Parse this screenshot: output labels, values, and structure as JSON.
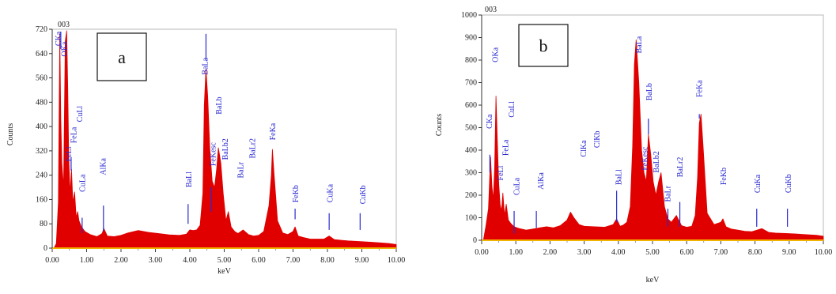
{
  "chart_data": [
    {
      "type": "area",
      "panel_label": "a",
      "top_label": "003",
      "xlabel": "keV",
      "ylabel": "Counts",
      "xlim": [
        0,
        10
      ],
      "ylim": [
        0,
        720
      ],
      "x_ticks": [
        "0.00",
        "1.00",
        "2.00",
        "3.00",
        "4.00",
        "5.00",
        "6.00",
        "7.00",
        "8.00",
        "9.00",
        "10.00"
      ],
      "y_ticks": [
        "0",
        "80",
        "160",
        "240",
        "320",
        "400",
        "480",
        "560",
        "640",
        "720"
      ],
      "series": [
        {
          "color": "#e00000",
          "x": [
            0.05,
            0.12,
            0.18,
            0.22,
            0.25,
            0.28,
            0.33,
            0.38,
            0.42,
            0.45,
            0.48,
            0.52,
            0.56,
            0.6,
            0.65,
            0.7,
            0.74,
            0.78,
            0.85,
            0.95,
            1.1,
            1.3,
            1.45,
            1.5,
            1.6,
            1.8,
            2.0,
            2.2,
            2.5,
            2.8,
            3.1,
            3.4,
            3.7,
            3.9,
            4.0,
            4.1,
            4.2,
            4.3,
            4.38,
            4.42,
            4.47,
            4.52,
            4.58,
            4.65,
            4.72,
            4.78,
            4.83,
            4.9,
            4.97,
            5.05,
            5.12,
            5.2,
            5.3,
            5.4,
            5.55,
            5.7,
            5.85,
            6.0,
            6.15,
            6.3,
            6.37,
            6.4,
            6.45,
            6.55,
            6.7,
            6.85,
            7.0,
            7.06,
            7.15,
            7.3,
            7.5,
            7.7,
            7.9,
            8.05,
            8.2,
            8.4,
            8.6,
            8.9,
            9.2,
            9.5,
            9.8,
            10.0
          ],
          "y": [
            0,
            15,
            150,
            705,
            420,
            280,
            200,
            680,
            715,
            540,
            300,
            180,
            260,
            150,
            185,
            100,
            120,
            90,
            70,
            55,
            45,
            38,
            48,
            65,
            40,
            38,
            42,
            50,
            58,
            52,
            48,
            44,
            42,
            46,
            60,
            58,
            60,
            75,
            180,
            470,
            590,
            500,
            330,
            220,
            200,
            260,
            330,
            280,
            180,
            90,
            120,
            70,
            55,
            48,
            60,
            45,
            40,
            42,
            55,
            140,
            240,
            325,
            240,
            90,
            50,
            45,
            55,
            70,
            40,
            35,
            30,
            30,
            30,
            40,
            28,
            26,
            24,
            22,
            20,
            18,
            15,
            12
          ]
        }
      ],
      "annotations": [
        {
          "text": "CKa",
          "x": 0.25,
          "y": 665,
          "marker": 0.25,
          "mlo": 655,
          "mhi": 712
        },
        {
          "text": "OKa",
          "x": 0.43,
          "y": 630,
          "marker": null
        },
        {
          "text": "FeLl",
          "x": 0.55,
          "y": 285,
          "marker": 0.55,
          "mlo": 255,
          "mhi": 300
        },
        {
          "text": "FeLa",
          "x": 0.7,
          "y": 345,
          "marker": null
        },
        {
          "text": "CuLl",
          "x": 0.87,
          "y": 415,
          "marker": null
        },
        {
          "text": "CuLa",
          "x": 0.95,
          "y": 185,
          "marker": 0.87,
          "mlo": 50,
          "mhi": 100
        },
        {
          "text": "AlKa",
          "x": 1.55,
          "y": 240,
          "marker": 1.49,
          "mlo": 55,
          "mhi": 140
        },
        {
          "text": "BaLl",
          "x": 4.05,
          "y": 200,
          "marker": 3.95,
          "mlo": 80,
          "mhi": 145
        },
        {
          "text": "BaLa",
          "x": 4.52,
          "y": 570,
          "marker": 4.47,
          "mlo": 620,
          "mhi": 705
        },
        {
          "text": "BaLb",
          "x": 4.92,
          "y": 440,
          "marker": null
        },
        {
          "text": "FeKesc",
          "x": 4.75,
          "y": 270,
          "marker": 4.62,
          "mlo": 120,
          "mhi": 200
        },
        {
          "text": "BaLb2",
          "x": 5.1,
          "y": 290,
          "marker": null
        },
        {
          "text": "BaLr",
          "x": 5.55,
          "y": 230,
          "marker": null
        },
        {
          "text": "BaLr2",
          "x": 5.9,
          "y": 295,
          "marker": null
        },
        {
          "text": "FeKa",
          "x": 6.48,
          "y": 355,
          "marker": null
        },
        {
          "text": "FeKb",
          "x": 7.15,
          "y": 150,
          "marker": 7.06,
          "mlo": 95,
          "mhi": 130
        },
        {
          "text": "CuKa",
          "x": 8.15,
          "y": 150,
          "marker": 8.05,
          "mlo": 60,
          "mhi": 115
        },
        {
          "text": "CuKb",
          "x": 9.1,
          "y": 145,
          "marker": 8.95,
          "mlo": 60,
          "mhi": 115
        }
      ]
    },
    {
      "type": "area",
      "panel_label": "b",
      "top_label": "003",
      "xlabel": "keV",
      "ylabel": "Counts",
      "xlim": [
        0,
        10
      ],
      "ylim": [
        0,
        1000
      ],
      "x_ticks": [
        "0.00",
        "1.00",
        "2.00",
        "3.00",
        "4.00",
        "5.00",
        "6.00",
        "7.00",
        "8.00",
        "9.00",
        "10.00"
      ],
      "y_ticks": [
        "0",
        "100",
        "200",
        "300",
        "400",
        "500",
        "600",
        "700",
        "800",
        "900",
        "1000"
      ],
      "series": [
        {
          "color": "#e00000",
          "x": [
            0.05,
            0.12,
            0.2,
            0.26,
            0.3,
            0.34,
            0.38,
            0.42,
            0.46,
            0.5,
            0.54,
            0.58,
            0.62,
            0.67,
            0.72,
            0.78,
            0.85,
            0.95,
            1.1,
            1.3,
            1.5,
            1.7,
            1.9,
            2.1,
            2.3,
            2.5,
            2.6,
            2.7,
            2.85,
            3.0,
            3.3,
            3.6,
            3.85,
            3.95,
            4.05,
            4.15,
            4.25,
            4.35,
            4.42,
            4.47,
            4.52,
            4.6,
            4.68,
            4.75,
            4.82,
            4.88,
            4.95,
            5.02,
            5.1,
            5.18,
            5.25,
            5.35,
            5.45,
            5.55,
            5.7,
            5.85,
            6.0,
            6.15,
            6.25,
            6.32,
            6.37,
            6.42,
            6.48,
            6.6,
            6.8,
            7.0,
            7.06,
            7.15,
            7.3,
            7.5,
            7.7,
            7.9,
            8.05,
            8.2,
            8.4,
            8.6,
            8.9,
            9.2,
            9.5,
            9.8,
            10.0
          ],
          "y": [
            0,
            60,
            140,
            370,
            240,
            180,
            320,
            640,
            430,
            250,
            160,
            130,
            210,
            110,
            160,
            90,
            75,
            60,
            52,
            45,
            50,
            55,
            60,
            55,
            65,
            90,
            125,
            100,
            70,
            62,
            60,
            58,
            70,
            95,
            62,
            68,
            80,
            150,
            420,
            780,
            890,
            700,
            400,
            300,
            260,
            470,
            380,
            260,
            200,
            260,
            300,
            150,
            95,
            80,
            110,
            65,
            58,
            62,
            110,
            280,
            520,
            560,
            420,
            120,
            70,
            80,
            95,
            60,
            50,
            45,
            40,
            38,
            45,
            52,
            35,
            32,
            30,
            28,
            25,
            22,
            18
          ]
        }
      ],
      "annotations": [
        {
          "text": "CKa",
          "x": 0.3,
          "y": 495,
          "marker": 0.24,
          "mlo": 300,
          "mhi": 380
        },
        {
          "text": "OKa",
          "x": 0.48,
          "y": 790,
          "marker": null
        },
        {
          "text": "FeLl",
          "x": 0.62,
          "y": 265,
          "marker": null
        },
        {
          "text": "FeLa",
          "x": 0.78,
          "y": 375,
          "marker": null
        },
        {
          "text": "CuLl",
          "x": 0.95,
          "y": 545,
          "marker": null
        },
        {
          "text": "CuLa",
          "x": 1.1,
          "y": 200,
          "marker": 0.95,
          "mlo": 30,
          "mhi": 130
        },
        {
          "text": "AlKa",
          "x": 1.8,
          "y": 225,
          "marker": 1.6,
          "mlo": 55,
          "mhi": 130
        },
        {
          "text": "ClKa",
          "x": 3.05,
          "y": 370,
          "marker": null
        },
        {
          "text": "ClKb",
          "x": 3.45,
          "y": 410,
          "marker": null
        },
        {
          "text": "BaLl",
          "x": 4.08,
          "y": 245,
          "marker": 3.95,
          "mlo": 80,
          "mhi": 220
        },
        {
          "text": "BaLa",
          "x": 4.68,
          "y": 830,
          "marker": null
        },
        {
          "text": "BaLb",
          "x": 4.98,
          "y": 620,
          "marker": 4.88,
          "mlo": 470,
          "mhi": 540
        },
        {
          "text": "FeKesc",
          "x": 4.85,
          "y": 310,
          "marker": null
        },
        {
          "text": "BaLb2",
          "x": 5.18,
          "y": 300,
          "marker": null
        },
        {
          "text": "BaLr",
          "x": 5.52,
          "y": 170,
          "marker": 5.45,
          "mlo": 60,
          "mhi": 140
        },
        {
          "text": "BaLr2",
          "x": 5.88,
          "y": 280,
          "marker": 5.8,
          "mlo": 60,
          "mhi": 170
        },
        {
          "text": "FeKa",
          "x": 6.45,
          "y": 635,
          "marker": 6.37,
          "mlo": 540,
          "mhi": 560
        },
        {
          "text": "FeKb",
          "x": 7.15,
          "y": 245,
          "marker": null
        },
        {
          "text": "CuKa",
          "x": 8.15,
          "y": 210,
          "marker": 8.05,
          "mlo": 60,
          "mhi": 140
        },
        {
          "text": "CuKb",
          "x": 9.05,
          "y": 210,
          "marker": 8.95,
          "mlo": 60,
          "mhi": 140
        }
      ]
    }
  ]
}
